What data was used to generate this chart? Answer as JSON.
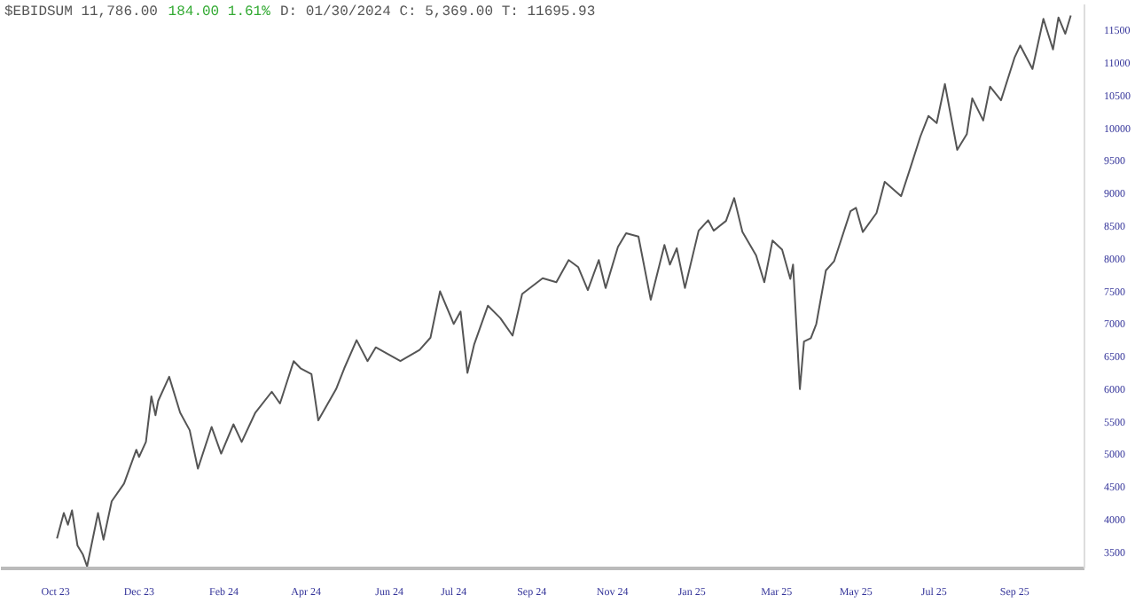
{
  "chart_data": {
    "type": "line",
    "title": "$EBIDSUM 11,786.00",
    "subtitle": "184.00 1.61%",
    "annotations": [
      "D: 01/30/2024 C: 5,369.00 T: 11695.93"
    ],
    "grid": false,
    "xlim": [
      "2023-08-22",
      "2025-10-22"
    ],
    "ylim": [
      3250,
      11900
    ],
    "xticks": [
      {
        "value": "2023-10-01",
        "label": "Oct 23"
      },
      {
        "value": "2023-12-01",
        "label": "Dec 23"
      },
      {
        "value": "2024-02-01",
        "label": "Feb 24"
      },
      {
        "value": "2024-04-01",
        "label": "Apr 24"
      },
      {
        "value": "2024-06-01",
        "label": "Jun 24"
      },
      {
        "value": "2024-07-18",
        "label": "Jul 24"
      },
      {
        "value": "2024-09-13",
        "label": "Sep 24"
      },
      {
        "value": "2024-11-11",
        "label": "Nov 24"
      },
      {
        "value": "2025-01-08",
        "label": "Jan 25"
      },
      {
        "value": "2025-03-11",
        "label": "Mar 25"
      },
      {
        "value": "2025-05-08",
        "label": "May 25"
      },
      {
        "value": "2025-07-04",
        "label": "Jul 25"
      },
      {
        "value": "2025-09-01",
        "label": "Sep 25"
      }
    ],
    "yticks": [
      3500,
      4000,
      4500,
      5000,
      5500,
      6000,
      6500,
      7000,
      7500,
      8000,
      8500,
      9000,
      9500,
      10000,
      10500,
      11000,
      11500
    ],
    "series": [
      {
        "color": "#555555",
        "x": [
          "2023-10-02",
          "2023-10-07",
          "2023-10-10",
          "2023-10-13",
          "2023-10-17",
          "2023-10-21",
          "2023-10-24",
          "2023-11-01",
          "2023-11-05",
          "2023-11-11",
          "2023-11-20",
          "2023-11-29",
          "2023-12-01",
          "2023-12-06",
          "2023-12-10",
          "2023-12-13",
          "2023-12-15",
          "2023-12-23",
          "2023-12-31",
          "2024-01-07",
          "2024-01-13",
          "2024-01-23",
          "2024-01-30",
          "2024-02-08",
          "2024-02-14",
          "2024-02-24",
          "2024-03-07",
          "2024-03-13",
          "2024-03-23",
          "2024-03-28",
          "2024-04-05",
          "2024-04-10",
          "2024-04-23",
          "2024-04-29",
          "2024-05-08",
          "2024-05-16",
          "2024-05-22",
          "2024-06-09",
          "2024-06-23",
          "2024-07-01",
          "2024-07-08",
          "2024-07-18",
          "2024-07-23",
          "2024-07-28",
          "2024-08-02",
          "2024-08-12",
          "2024-08-21",
          "2024-08-30",
          "2024-09-06",
          "2024-09-21",
          "2024-10-01",
          "2024-10-10",
          "2024-10-17",
          "2024-10-24",
          "2024-11-01",
          "2024-11-06",
          "2024-11-15",
          "2024-11-21",
          "2024-11-30",
          "2024-12-09",
          "2024-12-19",
          "2024-12-23",
          "2024-12-28",
          "2025-01-03",
          "2025-01-13",
          "2025-01-20",
          "2025-01-24",
          "2025-02-02",
          "2025-02-08",
          "2025-02-14",
          "2025-02-24",
          "2025-03-02",
          "2025-03-08",
          "2025-03-15",
          "2025-03-21",
          "2025-03-23",
          "2025-03-28",
          "2025-03-31",
          "2025-04-05",
          "2025-04-09",
          "2025-04-16",
          "2025-04-22",
          "2025-05-04",
          "2025-05-08",
          "2025-05-13",
          "2025-05-23",
          "2025-05-29",
          "2025-06-10",
          "2025-06-17",
          "2025-06-24",
          "2025-06-30",
          "2025-07-06",
          "2025-07-12",
          "2025-07-21",
          "2025-07-28",
          "2025-08-01",
          "2025-08-09",
          "2025-08-14",
          "2025-08-22",
          "2025-09-01",
          "2025-09-05",
          "2025-09-14",
          "2025-09-22",
          "2025-09-29",
          "2025-10-03",
          "2025-10-08",
          "2025-10-12"
        ],
        "values": [
          3710,
          4100,
          3920,
          4140,
          3600,
          3460,
          3280,
          4100,
          3690,
          4280,
          4550,
          5070,
          4960,
          5190,
          5890,
          5600,
          5820,
          6190,
          5640,
          5370,
          4780,
          5420,
          5010,
          5460,
          5190,
          5640,
          5960,
          5780,
          6430,
          6320,
          6230,
          5520,
          6000,
          6320,
          6750,
          6430,
          6640,
          6430,
          6600,
          6790,
          7500,
          7000,
          7190,
          6250,
          6690,
          7280,
          7090,
          6820,
          7460,
          7700,
          7640,
          7980,
          7870,
          7520,
          7980,
          7550,
          8180,
          8390,
          8340,
          7370,
          8210,
          7910,
          8160,
          7550,
          8430,
          8590,
          8430,
          8580,
          8930,
          8410,
          8050,
          7640,
          8280,
          8140,
          7690,
          7910,
          6000,
          6730,
          6780,
          7000,
          7820,
          7960,
          8730,
          8780,
          8410,
          8700,
          9180,
          8960,
          9410,
          9870,
          10190,
          10080,
          10680,
          9670,
          9910,
          10460,
          10120,
          10640,
          10430,
          11090,
          11270,
          10910,
          11680,
          11210,
          11700,
          11450,
          11730
        ]
      }
    ]
  }
}
